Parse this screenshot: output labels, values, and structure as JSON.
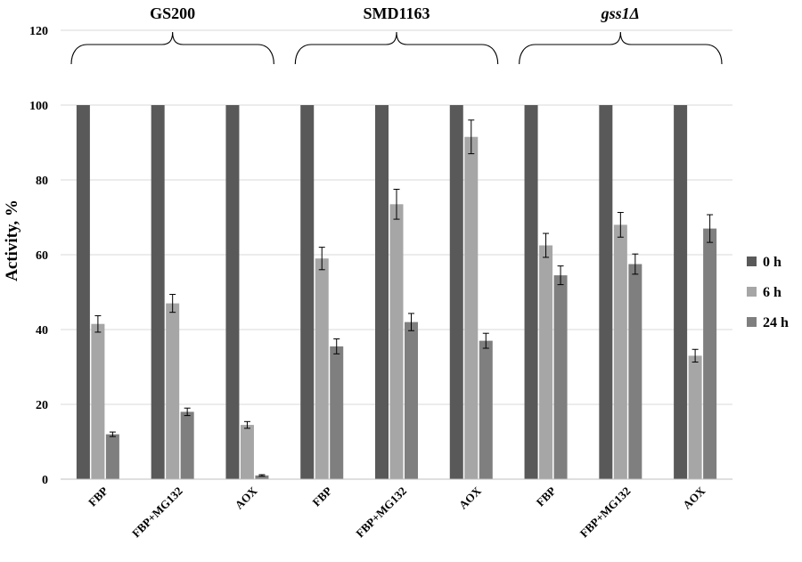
{
  "chart_data": {
    "type": "bar",
    "ylabel": "Activity, %",
    "ylim": [
      0,
      120
    ],
    "yticks": [
      0,
      20,
      40,
      60,
      80,
      100,
      120
    ],
    "grid": true,
    "legend_position": "right",
    "groups": [
      {
        "label": "GS200",
        "italic": false
      },
      {
        "label": "SMD1163",
        "italic": false
      },
      {
        "label": "gss1Δ",
        "italic": true
      }
    ],
    "categories": [
      "FBP",
      "FBP+MG132",
      "AOX",
      "FBP",
      "FBP+MG132",
      "AOX",
      "FBP",
      "FBP+MG132",
      "AOX"
    ],
    "series": [
      {
        "name": "0 h",
        "color": "#595959",
        "values": [
          100,
          100,
          100,
          100,
          100,
          100,
          100,
          100,
          100
        ],
        "errors": [
          0,
          0,
          0,
          0,
          0,
          0,
          0,
          0,
          0
        ]
      },
      {
        "name": "6 h",
        "color": "#a6a6a6",
        "values": [
          41.5,
          47,
          14.5,
          59,
          73.5,
          91.5,
          62.5,
          68,
          33
        ],
        "errors": [
          2.2,
          2.4,
          0.9,
          3,
          4,
          4.5,
          3.2,
          3.3,
          1.7
        ]
      },
      {
        "name": "24 h",
        "color": "#7f7f7f",
        "values": [
          12,
          18,
          1,
          35.5,
          42,
          37,
          54.5,
          57.5,
          67
        ],
        "errors": [
          0.6,
          1,
          0.2,
          2,
          2.3,
          2,
          2.5,
          2.7,
          3.7
        ]
      }
    ]
  }
}
